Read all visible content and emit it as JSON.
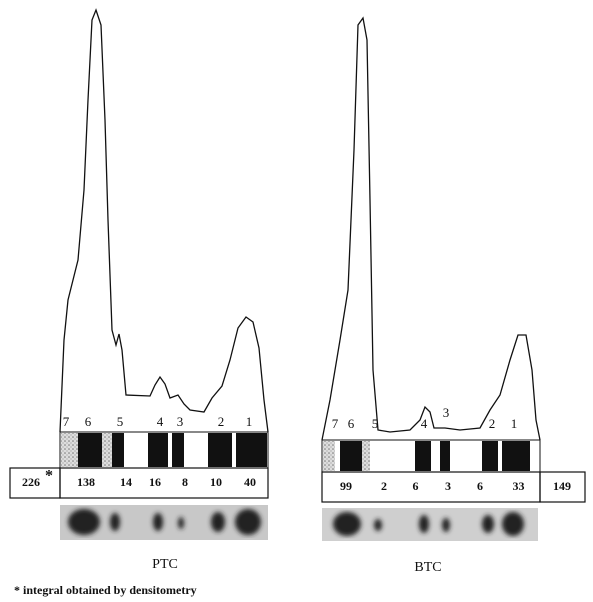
{
  "panels": [
    {
      "name": "PTC",
      "band_numbers": [
        7,
        6,
        5,
        4,
        3,
        2,
        1
      ],
      "integrals": [
        138,
        14,
        16,
        8,
        10,
        40
      ],
      "total": 226,
      "total_marker": "*"
    },
    {
      "name": "BTC",
      "band_numbers": [
        7,
        6,
        5,
        4,
        3,
        2,
        1
      ],
      "integrals": [
        99,
        2,
        6,
        3,
        6,
        33
      ],
      "total": 149
    }
  ],
  "footnote": "* integral obtained by densitometry"
}
